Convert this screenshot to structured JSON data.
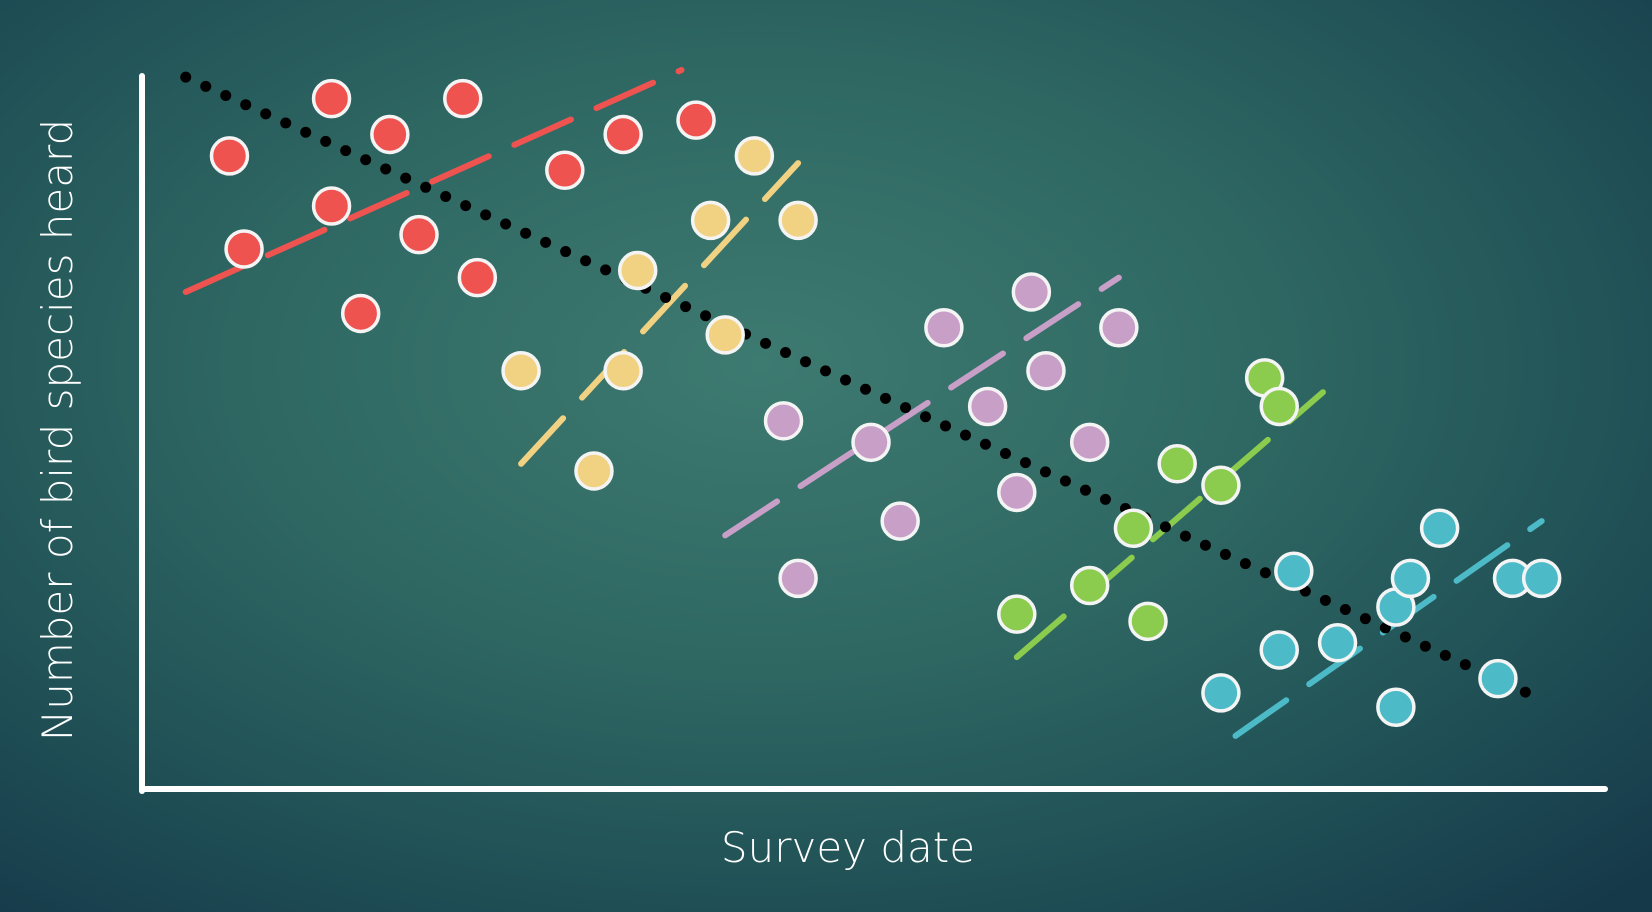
{
  "chart_data": {
    "type": "scatter",
    "title": "",
    "xlabel": "Survey date",
    "ylabel": "Number of bird species heard",
    "xlim": [
      0,
      100
    ],
    "ylim": [
      0,
      100
    ],
    "grid": false,
    "legend": "none",
    "tick_labels": false,
    "overall_trend": {
      "style": "dotted",
      "color": "#000000",
      "start": [
        3,
        99
      ],
      "end": [
        95,
        13
      ]
    },
    "series": [
      {
        "color": "#ef5350",
        "points": [
          [
            6,
            88
          ],
          [
            13,
            96
          ],
          [
            17,
            91
          ],
          [
            22,
            96
          ],
          [
            29,
            86
          ],
          [
            33,
            91
          ],
          [
            38,
            93
          ],
          [
            13,
            81
          ],
          [
            7,
            75
          ],
          [
            19,
            77
          ],
          [
            23,
            71
          ],
          [
            15,
            66
          ]
        ],
        "trend": {
          "start": [
            3,
            69
          ],
          "end": [
            37,
            100
          ]
        }
      },
      {
        "color": "#f1d282",
        "points": [
          [
            42,
            88
          ],
          [
            39,
            79
          ],
          [
            45,
            79
          ],
          [
            34,
            72
          ],
          [
            40,
            63
          ],
          [
            26,
            58
          ],
          [
            33,
            58
          ],
          [
            31,
            44
          ]
        ],
        "trend": {
          "start": [
            26,
            45
          ],
          "end": [
            45,
            87
          ]
        }
      },
      {
        "color": "#c79fc7",
        "points": [
          [
            55,
            64
          ],
          [
            61,
            69
          ],
          [
            67,
            64
          ],
          [
            62,
            58
          ],
          [
            44,
            51
          ],
          [
            58,
            53
          ],
          [
            50,
            48
          ],
          [
            52,
            37
          ],
          [
            60,
            41
          ],
          [
            65,
            48
          ],
          [
            45,
            29
          ]
        ],
        "trend": {
          "start": [
            40,
            35
          ],
          "end": [
            67,
            71
          ]
        }
      },
      {
        "color": "#8bcb4e",
        "points": [
          [
            77,
            57
          ],
          [
            71,
            45
          ],
          [
            74,
            42
          ],
          [
            78,
            53
          ],
          [
            68,
            36
          ],
          [
            60,
            24
          ],
          [
            65,
            28
          ],
          [
            69,
            23
          ]
        ],
        "trend": {
          "start": [
            60,
            18
          ],
          "end": [
            81,
            55
          ]
        }
      },
      {
        "color": "#4cbac7",
        "points": [
          [
            89,
            36
          ],
          [
            94,
            29
          ],
          [
            79,
            30
          ],
          [
            82,
            20
          ],
          [
            86,
            25
          ],
          [
            86,
            11
          ],
          [
            87,
            29
          ],
          [
            93,
            15
          ],
          [
            96,
            29
          ],
          [
            74,
            13
          ],
          [
            78,
            19
          ]
        ],
        "trend": {
          "start": [
            75,
            7
          ],
          "end": [
            96,
            37
          ]
        }
      }
    ]
  }
}
